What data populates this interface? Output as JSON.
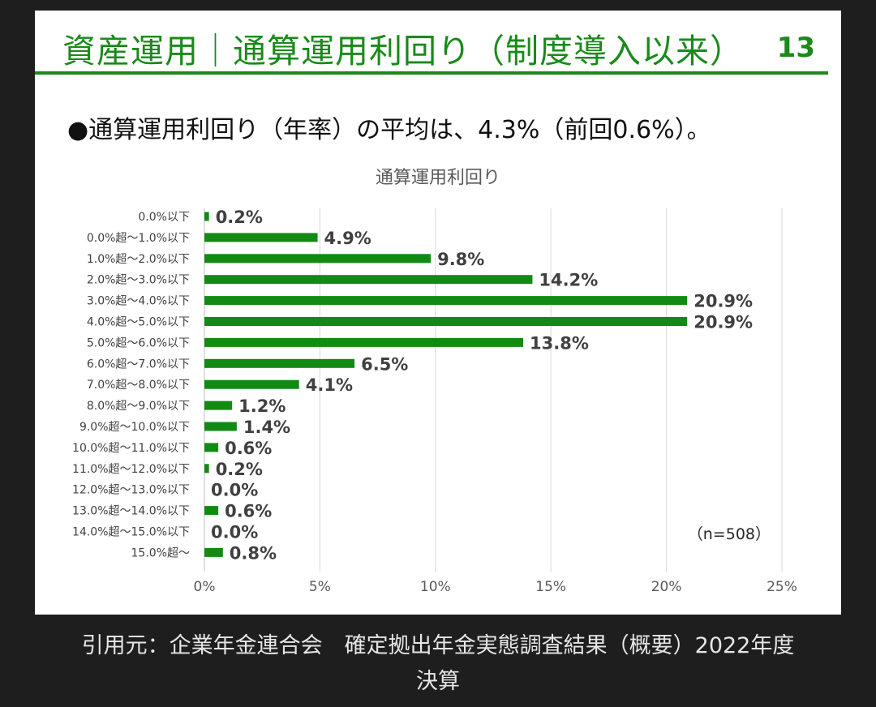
{
  "slide": {
    "title": "資産運用｜通算運用利回り（制度導入以来）",
    "page_number": "13",
    "summary": "●通算運用利回り（年率）の平均は、4.3%（前回0.6%）。"
  },
  "chart_data": {
    "type": "bar",
    "orientation": "horizontal",
    "title": "通算運用利回り",
    "categories": [
      "0.0%以下",
      "0.0%超～1.0%以下",
      "1.0%超～2.0%以下",
      "2.0%超～3.0%以下",
      "3.0%超～4.0%以下",
      "4.0%超～5.0%以下",
      "5.0%超～6.0%以下",
      "6.0%超～7.0%以下",
      "7.0%超～8.0%以下",
      "8.0%超～9.0%以下",
      "9.0%超～10.0%以下",
      "10.0%超～11.0%以下",
      "11.0%超～12.0%以下",
      "12.0%超～13.0%以下",
      "13.0%超～14.0%以下",
      "14.0%超～15.0%以下",
      "15.0%超～"
    ],
    "values": [
      0.2,
      4.9,
      9.8,
      14.2,
      20.9,
      20.9,
      13.8,
      6.5,
      4.1,
      1.2,
      1.4,
      0.6,
      0.2,
      0.0,
      0.6,
      0.0,
      0.8
    ],
    "value_labels": [
      "0.2%",
      "4.9%",
      "9.8%",
      "14.2%",
      "20.9%",
      "20.9%",
      "13.8%",
      "6.5%",
      "4.1%",
      "1.2%",
      "1.4%",
      "0.6%",
      "0.2%",
      "0.0%",
      "0.6%",
      "0.0%",
      "0.8%"
    ],
    "xlim": [
      0,
      25
    ],
    "xticks": [
      0,
      5,
      10,
      15,
      20,
      25
    ],
    "xtick_labels": [
      "0%",
      "5%",
      "10%",
      "15%",
      "20%",
      "25%"
    ],
    "grid": true,
    "bar_color": "#138a13",
    "annotation": "（n=508）"
  },
  "caption": {
    "line1": "引用元：企業年金連合会　確定拠出年金実態調査結果（概要）2022年度",
    "line2": "決算"
  }
}
